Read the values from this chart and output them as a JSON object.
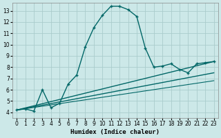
{
  "xlabel": "Humidex (Indice chaleur)",
  "background_color": "#cce8e8",
  "grid_color": "#aacccc",
  "line_color": "#006666",
  "xlim": [
    -0.5,
    23.5
  ],
  "ylim": [
    3.5,
    13.7
  ],
  "xticks": [
    0,
    1,
    2,
    3,
    4,
    5,
    6,
    7,
    8,
    9,
    10,
    11,
    12,
    13,
    14,
    15,
    16,
    17,
    18,
    19,
    20,
    21,
    22,
    23
  ],
  "yticks": [
    4,
    5,
    6,
    7,
    8,
    9,
    10,
    11,
    12,
    13
  ],
  "main_x": [
    0,
    1,
    2,
    3,
    4,
    5,
    6,
    7,
    8,
    9,
    10,
    11,
    12,
    13,
    14,
    15,
    16,
    17,
    18,
    19,
    20,
    21,
    22,
    23
  ],
  "main_y": [
    4.2,
    4.3,
    4.1,
    6.0,
    4.4,
    4.8,
    6.5,
    7.3,
    9.8,
    11.5,
    12.6,
    13.4,
    13.4,
    13.1,
    12.5,
    9.7,
    8.0,
    8.1,
    8.3,
    7.8,
    7.5,
    8.3,
    8.4,
    8.5
  ],
  "ref_lines": [
    {
      "x": [
        0,
        23
      ],
      "y": [
        4.2,
        8.5
      ],
      "lw": 1.0
    },
    {
      "x": [
        0,
        23
      ],
      "y": [
        4.2,
        7.5
      ],
      "lw": 1.0
    },
    {
      "x": [
        0,
        23
      ],
      "y": [
        4.2,
        6.8
      ],
      "lw": 0.8
    }
  ]
}
